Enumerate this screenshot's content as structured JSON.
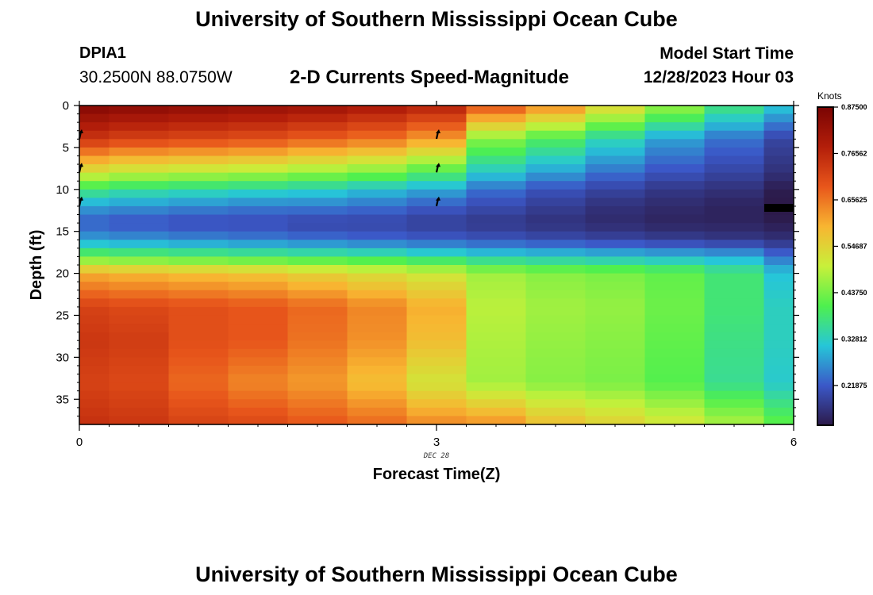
{
  "header": {
    "title": "University of Southern Mississippi Ocean Cube",
    "station_id": "DPIA1",
    "station_coords": "30.2500N  88.0750W",
    "subtitle": "2-D Currents Speed-Magnitude",
    "start_label": "Model Start Time",
    "start_value": "12/28/2023 Hour 03"
  },
  "footer": {
    "repeat_title": "University of Southern Mississippi Ocean Cube"
  },
  "chart_data": {
    "type": "heatmap",
    "title": "2-D Currents Speed-Magnitude",
    "xlabel": "Forecast Time(Z)",
    "ylabel": "Depth (ft)",
    "x_date_label": "DEC 28",
    "xlim": [
      0,
      6
    ],
    "ylim": [
      38,
      0
    ],
    "x_ticks": [
      "0",
      "3",
      "6"
    ],
    "x_tick_values": [
      0,
      3,
      6
    ],
    "y_ticks": [
      "0",
      "5",
      "10",
      "15",
      "20",
      "25",
      "30",
      "35"
    ],
    "y_tick_values": [
      0,
      5,
      10,
      15,
      20,
      25,
      30,
      35
    ],
    "colorbar": {
      "unit": "Knots",
      "min": 0.125,
      "max": 0.875,
      "tick_labels": [
        "0.87500",
        "0.76562",
        "0.65625",
        "0.54687",
        "0.43750",
        "0.32812",
        "0.21875"
      ],
      "tick_values": [
        0.875,
        0.765625,
        0.65625,
        0.546875,
        0.4375,
        0.328125,
        0.21875
      ],
      "colors": [
        "#2c1a4a",
        "#3b58c8",
        "#26c6d8",
        "#4ef04e",
        "#c8f03a",
        "#f8b531",
        "#e8561b",
        "#b31e0a",
        "#7a0403"
      ]
    },
    "column_edges": [
      0,
      0.25,
      0.75,
      1.25,
      1.75,
      2.25,
      2.75,
      3.25,
      3.75,
      4.25,
      4.75,
      5.25,
      5.75,
      6.0
    ],
    "depth_bins": 38,
    "profile_depths": [
      0,
      4,
      8,
      10,
      12,
      14,
      16,
      18,
      20,
      24,
      28,
      33,
      38
    ],
    "speed_profiles": [
      [
        0.86,
        0.74,
        0.52,
        0.38,
        0.28,
        0.22,
        0.28,
        0.42,
        0.6,
        0.72,
        0.74,
        0.72,
        0.75
      ],
      [
        0.85,
        0.72,
        0.5,
        0.36,
        0.27,
        0.21,
        0.27,
        0.41,
        0.59,
        0.71,
        0.73,
        0.71,
        0.74
      ],
      [
        0.84,
        0.71,
        0.49,
        0.35,
        0.26,
        0.2,
        0.26,
        0.4,
        0.58,
        0.7,
        0.7,
        0.67,
        0.72
      ],
      [
        0.83,
        0.7,
        0.48,
        0.34,
        0.25,
        0.2,
        0.25,
        0.39,
        0.57,
        0.69,
        0.69,
        0.64,
        0.71
      ],
      [
        0.82,
        0.68,
        0.46,
        0.33,
        0.25,
        0.19,
        0.24,
        0.38,
        0.55,
        0.67,
        0.66,
        0.62,
        0.69
      ],
      [
        0.8,
        0.66,
        0.44,
        0.31,
        0.24,
        0.19,
        0.23,
        0.37,
        0.53,
        0.64,
        0.63,
        0.58,
        0.67
      ],
      [
        0.78,
        0.62,
        0.4,
        0.29,
        0.22,
        0.18,
        0.22,
        0.35,
        0.51,
        0.6,
        0.58,
        0.52,
        0.64
      ],
      [
        0.7,
        0.45,
        0.32,
        0.24,
        0.2,
        0.17,
        0.21,
        0.33,
        0.47,
        0.49,
        0.48,
        0.47,
        0.63
      ],
      [
        0.64,
        0.4,
        0.28,
        0.21,
        0.18,
        0.16,
        0.2,
        0.32,
        0.45,
        0.47,
        0.46,
        0.45,
        0.58
      ],
      [
        0.55,
        0.34,
        0.24,
        0.19,
        0.16,
        0.15,
        0.19,
        0.31,
        0.44,
        0.46,
        0.45,
        0.44,
        0.55
      ],
      [
        0.47,
        0.28,
        0.21,
        0.17,
        0.15,
        0.14,
        0.18,
        0.3,
        0.42,
        0.43,
        0.42,
        0.41,
        0.52
      ],
      [
        0.38,
        0.24,
        0.19,
        0.16,
        0.14,
        0.14,
        0.17,
        0.29,
        0.38,
        0.38,
        0.37,
        0.36,
        0.48
      ],
      [
        0.32,
        0.19,
        0.16,
        0.13,
        0.12,
        0.13,
        0.16,
        0.24,
        0.31,
        0.33,
        0.33,
        0.32,
        0.42
      ]
    ],
    "vectors": [
      {
        "time": 0,
        "depth": 3.5
      },
      {
        "time": 0,
        "depth": 7.5
      },
      {
        "time": 0,
        "depth": 11.5
      },
      {
        "time": 3,
        "depth": 3.5
      },
      {
        "time": 3,
        "depth": 7.5
      },
      {
        "time": 3,
        "depth": 11.5
      }
    ]
  }
}
